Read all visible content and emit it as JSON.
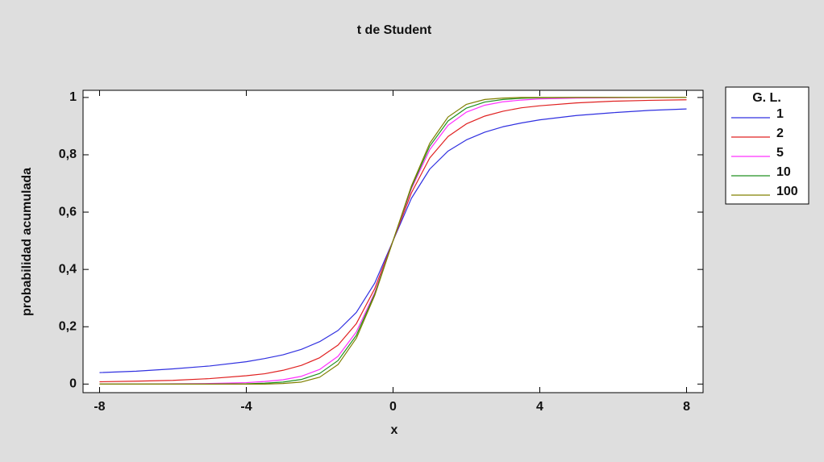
{
  "chart_data": {
    "type": "line",
    "title": "t de Student",
    "x_label": "x",
    "y_label": "probabilidad acumulada",
    "x": [
      -8,
      -7,
      -6,
      -5,
      -4,
      -3.5,
      -3,
      -2.5,
      -2,
      -1.5,
      -1,
      -0.5,
      0,
      0.5,
      1,
      1.5,
      2,
      2.5,
      3,
      3.5,
      4,
      5,
      6,
      7,
      8
    ],
    "legend_title": "G. L.",
    "legend": "right",
    "series": [
      {
        "name": "1",
        "color": "#3030e0",
        "values": [
          0.04,
          0.045,
          0.053,
          0.063,
          0.078,
          0.089,
          0.102,
          0.121,
          0.148,
          0.187,
          0.25,
          0.352,
          0.5,
          0.648,
          0.75,
          0.813,
          0.852,
          0.879,
          0.898,
          0.911,
          0.922,
          0.937,
          0.947,
          0.955,
          0.96
        ]
      },
      {
        "name": "2",
        "color": "#e02020",
        "values": [
          0.008,
          0.01,
          0.013,
          0.019,
          0.029,
          0.036,
          0.048,
          0.065,
          0.092,
          0.136,
          0.211,
          0.333,
          0.5,
          0.667,
          0.789,
          0.864,
          0.908,
          0.935,
          0.952,
          0.964,
          0.971,
          0.981,
          0.987,
          0.99,
          0.992
        ]
      },
      {
        "name": "5",
        "color": "#ff30ff",
        "values": [
          0,
          0,
          0.001,
          0.002,
          0.005,
          0.009,
          0.015,
          0.027,
          0.051,
          0.097,
          0.182,
          0.319,
          0.5,
          0.681,
          0.818,
          0.903,
          0.949,
          0.973,
          0.985,
          0.991,
          0.995,
          0.998,
          0.999,
          1,
          1
        ]
      },
      {
        "name": "10",
        "color": "#209020",
        "values": [
          0,
          0,
          0,
          0,
          0.001,
          0.003,
          0.007,
          0.016,
          0.037,
          0.082,
          0.17,
          0.314,
          0.5,
          0.686,
          0.83,
          0.918,
          0.963,
          0.984,
          0.993,
          0.997,
          0.999,
          1,
          1,
          1,
          1
        ]
      },
      {
        "name": "100",
        "color": "#808000",
        "values": [
          0,
          0,
          0,
          0,
          0,
          0,
          0.002,
          0.007,
          0.024,
          0.068,
          0.16,
          0.309,
          0.5,
          0.691,
          0.84,
          0.932,
          0.976,
          0.993,
          0.998,
          1,
          1,
          1,
          1,
          1,
          1
        ]
      }
    ],
    "xlim": [
      -8.45,
      8.45
    ],
    "xticks": [
      -8,
      -4,
      0,
      4,
      8
    ],
    "ylim": [
      -0.03,
      1.025
    ],
    "yticks": [
      0,
      {
        "value": 0.2,
        "label": "0,2"
      },
      {
        "value": 0.4,
        "label": "0,4"
      },
      {
        "value": 0.6,
        "label": "0,6"
      },
      {
        "value": 0.8,
        "label": "0,8"
      },
      1
    ],
    "grid": false
  }
}
